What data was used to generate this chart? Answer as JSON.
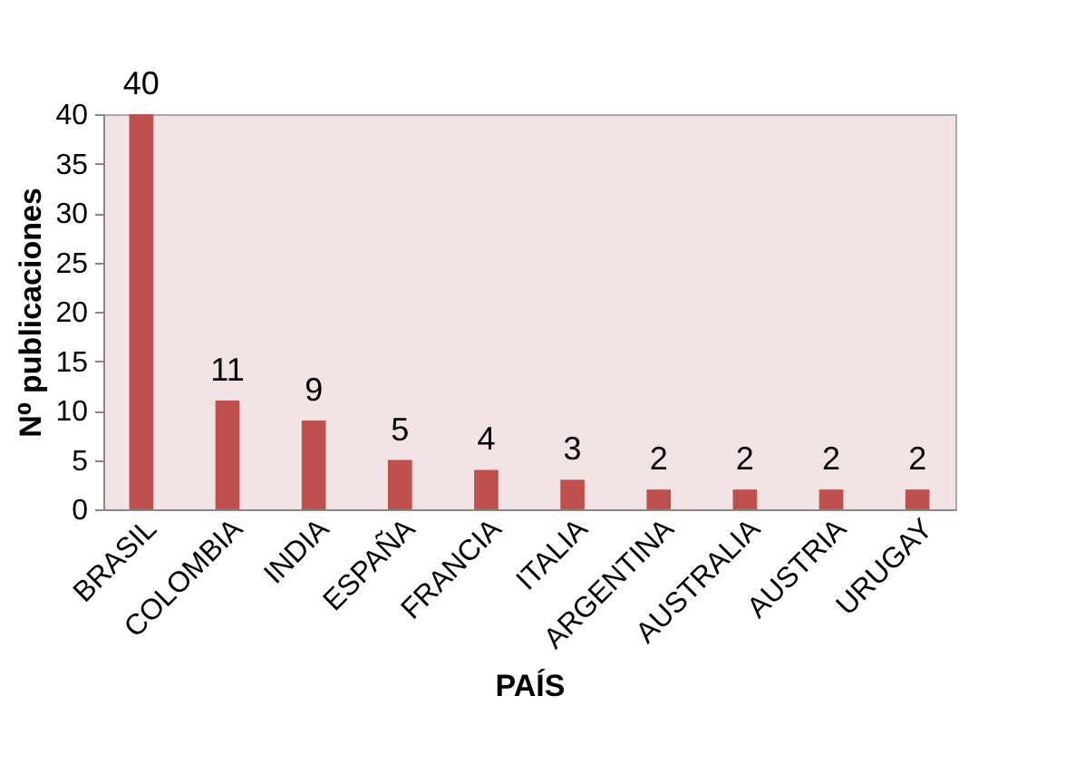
{
  "chart_data": {
    "type": "bar",
    "xlabel": "PAÍS",
    "ylabel": "N⁰ publicaciones",
    "categories": [
      "BRASIL",
      "COLOMBIA",
      "INDIA",
      "ESPAÑA",
      "FRANCIA",
      "ITALIA",
      "ARGENTINA",
      "AUSTRALIA",
      "AUSTRIA",
      "URUGAY"
    ],
    "values": [
      40,
      11,
      9,
      5,
      4,
      3,
      2,
      2,
      2,
      2
    ],
    "color": "#c0504d",
    "ylim": [
      0,
      40
    ],
    "yticks": [
      0,
      5,
      10,
      15,
      20,
      25,
      30,
      35,
      40
    ],
    "data_labels": true
  }
}
